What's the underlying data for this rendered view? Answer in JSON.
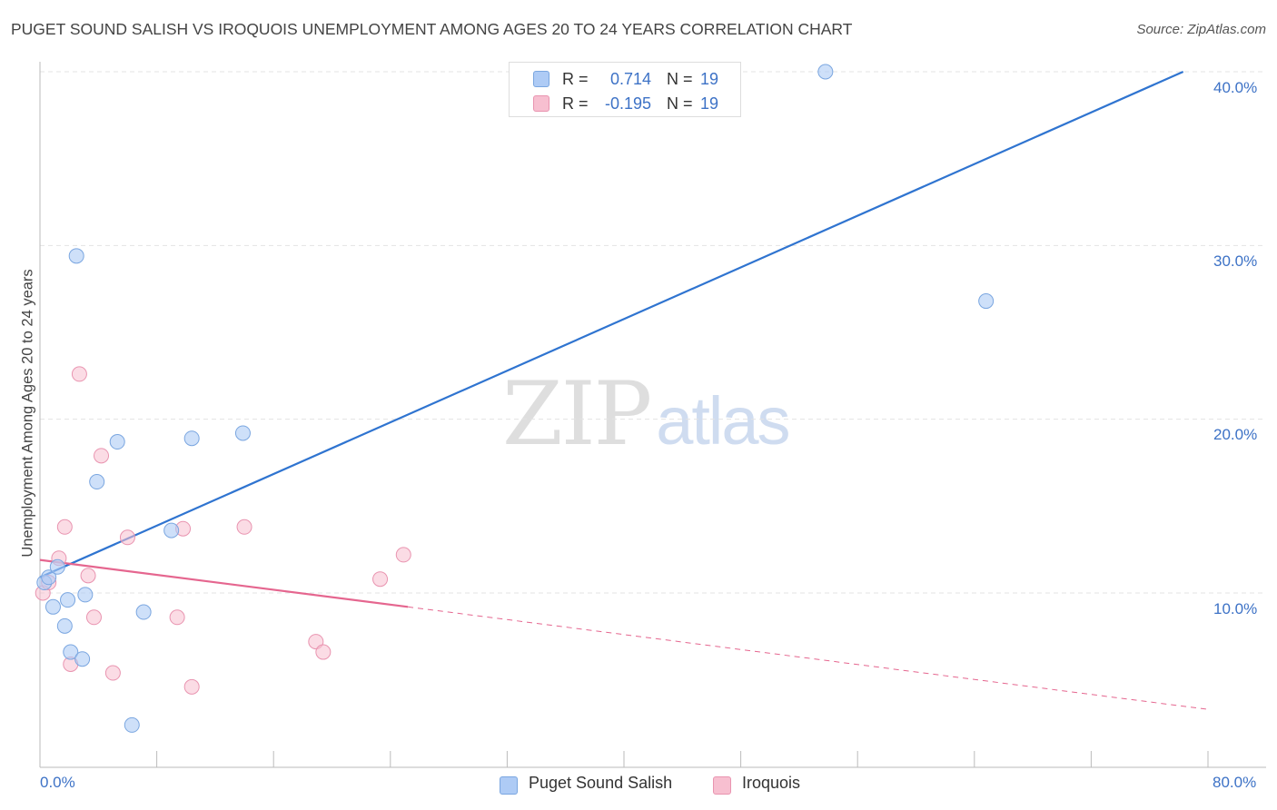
{
  "header": {
    "title": "PUGET SOUND SALISH VS IROQUOIS UNEMPLOYMENT AMONG AGES 20 TO 24 YEARS CORRELATION CHART",
    "source": "Source: ZipAtlas.com"
  },
  "watermark": {
    "zip": "ZIP",
    "atlas": "atlas"
  },
  "legend": {
    "rows": [
      {
        "r_label": "R =",
        "r_value": "0.714",
        "n_label": "N =",
        "n_value": "19",
        "color": "#aecbf5"
      },
      {
        "r_label": "R =",
        "r_value": "-0.195",
        "n_label": "N =",
        "n_value": "19",
        "color": "#f7bfd0"
      }
    ]
  },
  "bottom_legend": {
    "series1": "Puget Sound Salish",
    "series2": "Iroquois"
  },
  "chart_data": {
    "type": "scatter",
    "title": "PUGET SOUND SALISH VS IROQUOIS UNEMPLOYMENT AMONG AGES 20 TO 24 YEARS CORRELATION CHART",
    "xlabel": "",
    "ylabel": "Unemployment Among Ages 20 to 24 years",
    "xlim": [
      0,
      80
    ],
    "ylim": [
      1,
      41
    ],
    "x_tick_labels": [
      "0.0%",
      "80.0%"
    ],
    "y_ticks": [
      {
        "value": 10,
        "label": "10.0%"
      },
      {
        "value": 20,
        "label": "20.0%"
      },
      {
        "value": 30,
        "label": "30.0%"
      },
      {
        "value": 40,
        "label": "40.0%"
      }
    ],
    "colors": {
      "series1_fill": "#aecbf5",
      "series1_stroke": "#7aa6e0",
      "series1_line": "#2f74d0",
      "series2_fill": "#f7bfd0",
      "series2_stroke": "#e994b0",
      "series2_line": "#e5668f",
      "grid": "#e3e3e3",
      "axis": "#bbbbbb"
    },
    "series": [
      {
        "name": "Puget Sound Salish",
        "points": [
          [
            0.3,
            10.6
          ],
          [
            0.6,
            10.9
          ],
          [
            0.9,
            9.2
          ],
          [
            1.2,
            11.5
          ],
          [
            1.7,
            8.1
          ],
          [
            1.9,
            9.6
          ],
          [
            2.1,
            6.6
          ],
          [
            2.5,
            29.4
          ],
          [
            2.9,
            6.2
          ],
          [
            3.1,
            9.9
          ],
          [
            3.9,
            16.4
          ],
          [
            5.3,
            18.7
          ],
          [
            6.3,
            2.4
          ],
          [
            7.1,
            8.9
          ],
          [
            9.0,
            13.6
          ],
          [
            10.4,
            18.9
          ],
          [
            13.9,
            19.2
          ],
          [
            53.8,
            40.0
          ],
          [
            64.8,
            26.8
          ]
        ],
        "trend": {
          "x": [
            0,
            78.3
          ],
          "y": [
            10.9,
            40.0
          ],
          "dashed_to": null
        }
      },
      {
        "name": "Iroquois",
        "points": [
          [
            0.2,
            10.0
          ],
          [
            0.6,
            10.6
          ],
          [
            1.3,
            12.0
          ],
          [
            1.7,
            13.8
          ],
          [
            2.1,
            5.9
          ],
          [
            2.7,
            22.6
          ],
          [
            3.3,
            11.0
          ],
          [
            3.7,
            8.6
          ],
          [
            4.2,
            17.9
          ],
          [
            5.0,
            5.4
          ],
          [
            6.0,
            13.2
          ],
          [
            9.4,
            8.6
          ],
          [
            9.8,
            13.7
          ],
          [
            10.4,
            4.6
          ],
          [
            14.0,
            13.8
          ],
          [
            18.9,
            7.2
          ],
          [
            19.4,
            6.6
          ],
          [
            23.3,
            10.8
          ],
          [
            24.9,
            12.2
          ]
        ],
        "trend": {
          "x": [
            0,
            25.2
          ],
          "y": [
            11.9,
            9.2
          ],
          "dashed_to": [
            80.0,
            3.3
          ]
        }
      }
    ]
  }
}
